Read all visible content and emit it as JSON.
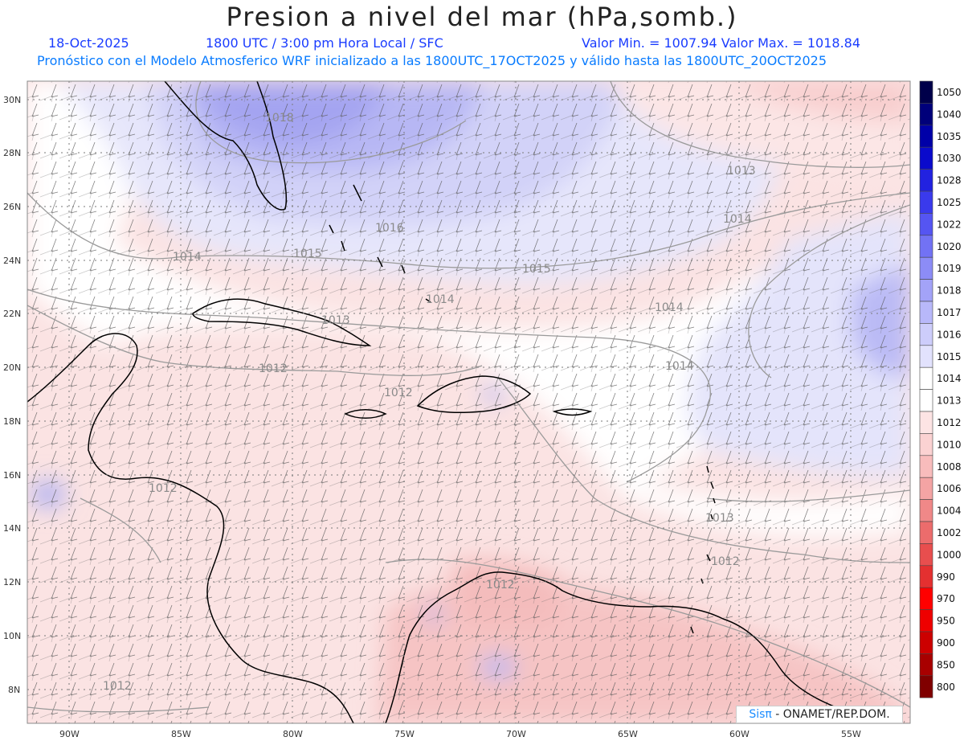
{
  "header": {
    "title": "Presion a nivel del mar (hPa,somb.)",
    "date": "18-Oct-2025",
    "time": "1800 UTC / 3:00 pm Hora Local / SFC",
    "min_max": "Valor Min. = 1007.94  Valor Max. = 1018.84",
    "description": "Pronóstico con el Modelo Atmosferico WRF inicializado a las 1800UTC_17OCT2025 y válido hasta las  1800UTC_20OCT2025"
  },
  "credit": {
    "logo": "Sisπ",
    "text": " - ONAMET/REP.DOM."
  },
  "axes": {
    "lat_labels": [
      "30N",
      "28N",
      "26N",
      "24N",
      "22N",
      "20N",
      "18N",
      "16N",
      "14N",
      "12N",
      "10N",
      "8N"
    ],
    "lon_labels": [
      "90W",
      "85W",
      "80W",
      "75W",
      "70W",
      "65W",
      "60W",
      "55W"
    ]
  },
  "colorbar": {
    "levels": [
      "1050",
      "1040",
      "1035",
      "1030",
      "1028",
      "1025",
      "1022",
      "1020",
      "1019",
      "1018",
      "1017",
      "1016",
      "1015",
      "1014",
      "1013",
      "1012",
      "1010",
      "1008",
      "1006",
      "1004",
      "1002",
      "1000",
      "990",
      "970",
      "950",
      "900",
      "850",
      "800"
    ],
    "colors": [
      "#00004a",
      "#00007a",
      "#0000a8",
      "#0a0acc",
      "#2222e0",
      "#3a3aec",
      "#5555f2",
      "#7272f4",
      "#8c8cf6",
      "#a3a3f8",
      "#b8b8fa",
      "#cdcdfb",
      "#e2e2fd",
      "#ffffff",
      "#ffffff",
      "#fde4e4",
      "#fbd2d2",
      "#f8bcbc",
      "#f4a4a4",
      "#f08888",
      "#ec6c6c",
      "#e84e4e",
      "#e43030",
      "#ff0000",
      "#ee0000",
      "#cc0000",
      "#a80000",
      "#800000"
    ]
  },
  "contour_labels": [
    {
      "text": "1018"
    },
    {
      "text": "1013"
    },
    {
      "text": "1016"
    },
    {
      "text": "1014"
    },
    {
      "text": "1014"
    },
    {
      "text": "1015"
    },
    {
      "text": "1015"
    },
    {
      "text": "1014"
    },
    {
      "text": "1014"
    },
    {
      "text": "1013"
    },
    {
      "text": "1012"
    },
    {
      "text": "1012"
    },
    {
      "text": "1014"
    },
    {
      "text": "1012"
    },
    {
      "text": "1013"
    },
    {
      "text": "1012"
    },
    {
      "text": "1012"
    },
    {
      "text": "1012"
    }
  ]
}
